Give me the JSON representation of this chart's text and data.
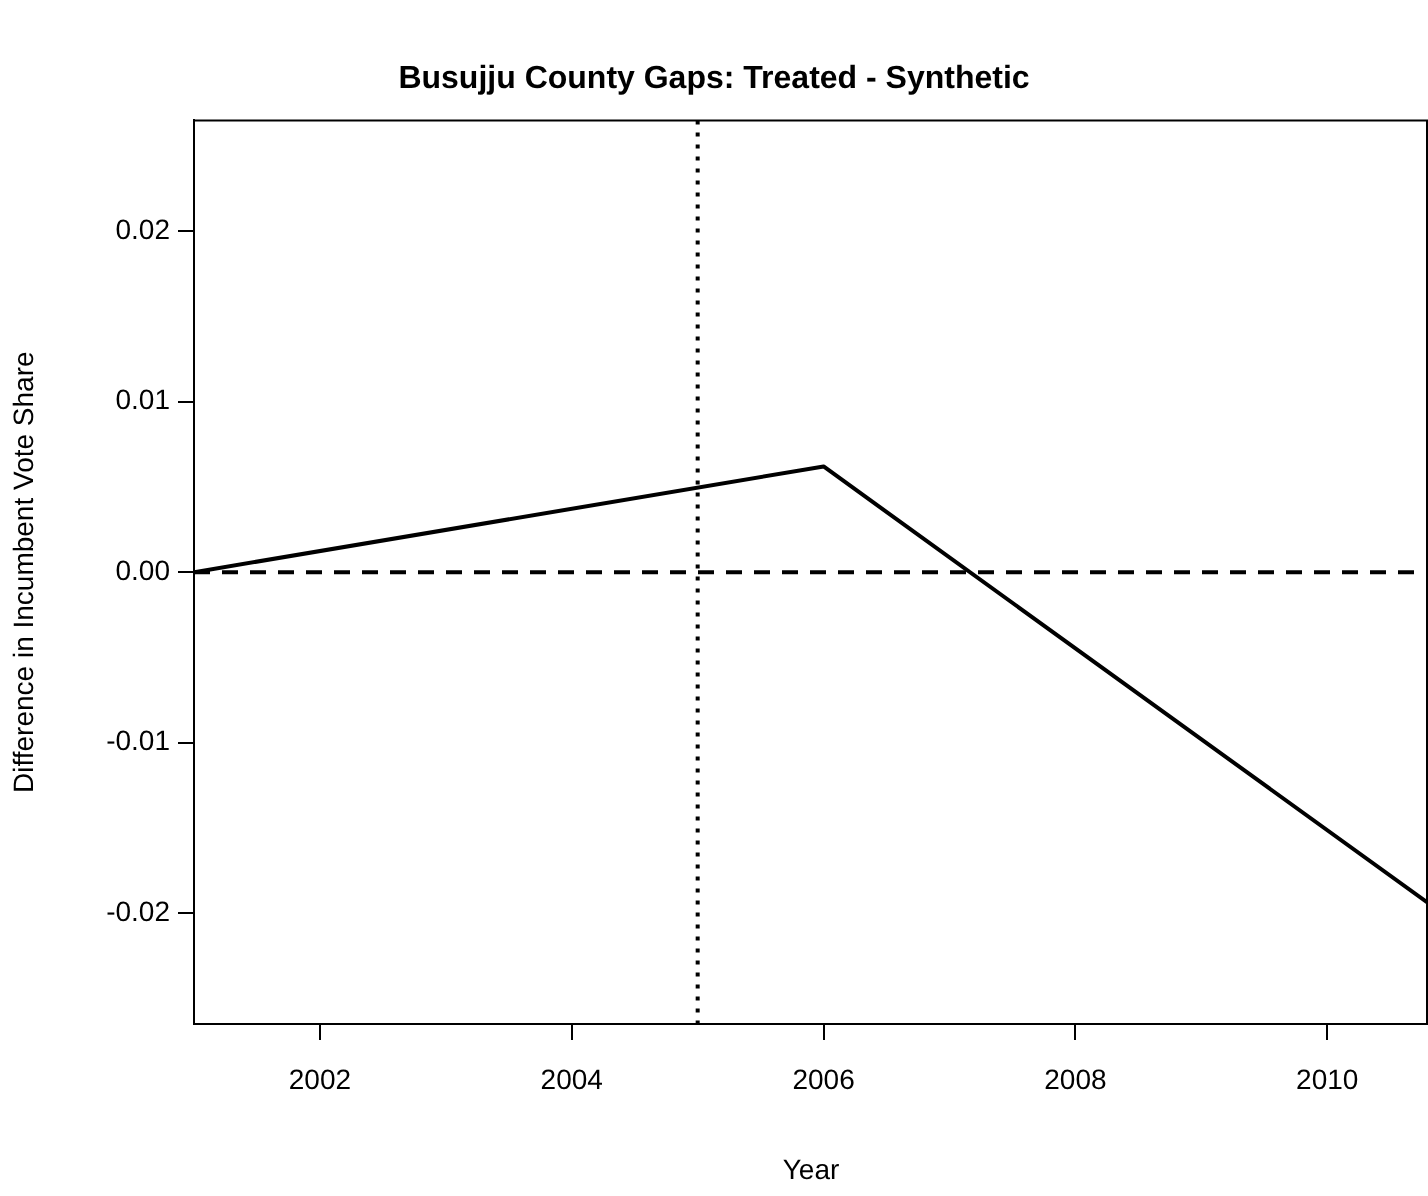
{
  "chart_data": {
    "type": "line",
    "title": "Busujju County Gaps: Treated - Synthetic",
    "xlabel": "Year",
    "ylabel": "Difference in Incumbent Vote Share",
    "x": [
      2001,
      2006,
      2010.8
    ],
    "series": [
      {
        "color": "#000000",
        "values": [
          0,
          0.0062,
          -0.0194
        ]
      }
    ],
    "xlim": [
      2001,
      2010.8
    ],
    "xticks": [
      2002,
      2004,
      2006,
      2008,
      2010
    ],
    "ylim": [
      -0.0265,
      0.0265
    ],
    "yticks": [
      {
        "value": -0.02,
        "label": "-0.02"
      },
      {
        "value": -0.01,
        "label": "-0.01"
      },
      {
        "value": 0,
        "label": "0.00"
      },
      {
        "value": 0.01,
        "label": "0.01"
      },
      {
        "value": 0.02,
        "label": "0.02"
      }
    ],
    "ref_lines": [
      {
        "axis": "y",
        "value": 0,
        "line_style": "dashed",
        "color": "#000000"
      },
      {
        "axis": "x",
        "value": 2005,
        "line_style": "dotted",
        "color": "#000000"
      }
    ],
    "grid": false,
    "legend": false,
    "marker": "none",
    "line_style": "solid"
  }
}
